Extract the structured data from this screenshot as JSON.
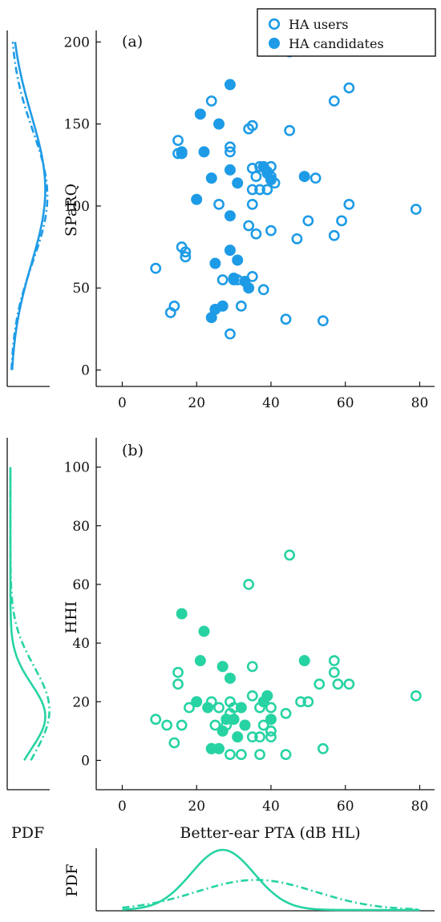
{
  "colors": {
    "panel_a": "#1e9be6",
    "panel_b": "#27d3a3",
    "axis": "#111111"
  },
  "legend": {
    "users_label": "HA users",
    "candidates_label": "HA candidates",
    "placement": "top-right"
  },
  "shared": {
    "pdf_label": "PDF",
    "xlabel": "Better-ear PTA (dB HL)"
  },
  "chart_data": [
    {
      "id": "a",
      "type": "scatter",
      "panel_label": "(a)",
      "xlabel": "",
      "ylabel": "SPaRQ",
      "xlim": [
        -7,
        84
      ],
      "ylim": [
        -10,
        207
      ],
      "xticks": [
        0,
        20,
        40,
        60,
        80
      ],
      "yticks": [
        0,
        50,
        100,
        150,
        200
      ],
      "grid": false,
      "series": [
        {
          "name": "HA users",
          "marker": "open-circle",
          "points": [
            [
              45,
              194
            ],
            [
              61,
              172
            ],
            [
              24,
              164
            ],
            [
              57,
              164
            ],
            [
              35,
              149
            ],
            [
              34,
              147
            ],
            [
              45,
              146
            ],
            [
              15,
              140
            ],
            [
              29,
              136
            ],
            [
              29,
              133
            ],
            [
              15,
              132
            ],
            [
              37,
              124
            ],
            [
              40,
              124
            ],
            [
              35,
              123
            ],
            [
              39,
              121
            ],
            [
              36,
              118
            ],
            [
              40,
              118
            ],
            [
              41,
              114
            ],
            [
              35,
              110
            ],
            [
              37,
              110
            ],
            [
              39,
              110
            ],
            [
              52,
              117
            ],
            [
              26,
              101
            ],
            [
              35,
              101
            ],
            [
              61,
              101
            ],
            [
              79,
              98
            ],
            [
              50,
              91
            ],
            [
              59,
              91
            ],
            [
              34,
              88
            ],
            [
              40,
              85
            ],
            [
              36,
              83
            ],
            [
              47,
              80
            ],
            [
              57,
              82
            ],
            [
              16,
              75
            ],
            [
              17,
              72
            ],
            [
              17,
              69
            ],
            [
              9,
              62
            ],
            [
              35,
              57
            ],
            [
              27,
              55
            ],
            [
              31,
              55
            ],
            [
              30,
              55
            ],
            [
              38,
              49
            ],
            [
              14,
              39
            ],
            [
              13,
              35
            ],
            [
              32,
              39
            ],
            [
              44,
              31
            ],
            [
              54,
              30
            ],
            [
              29,
              22
            ]
          ]
        },
        {
          "name": "HA candidates",
          "marker": "filled-circle",
          "points": [
            [
              29,
              174
            ],
            [
              21,
              156
            ],
            [
              26,
              150
            ],
            [
              16,
              133
            ],
            [
              22,
              133
            ],
            [
              16,
              132
            ],
            [
              29,
              122
            ],
            [
              38,
              124
            ],
            [
              39,
              120
            ],
            [
              40,
              116
            ],
            [
              49,
              118
            ],
            [
              24,
              117
            ],
            [
              31,
              114
            ],
            [
              20,
              104
            ],
            [
              29,
              94
            ],
            [
              29,
              73
            ],
            [
              31,
              67
            ],
            [
              25,
              65
            ],
            [
              30,
              56
            ],
            [
              34,
              50
            ],
            [
              33,
              54
            ],
            [
              27,
              39
            ],
            [
              25,
              37
            ],
            [
              24,
              32
            ]
          ]
        }
      ],
      "side_pdf": {
        "range": [
          0,
          200
        ],
        "users_solid": {
          "mean": 110,
          "sd": 45,
          "peak": 1.0
        },
        "candidates_dashdot": {
          "mean": 106,
          "sd": 40,
          "peak": 1.06
        }
      }
    },
    {
      "id": "b",
      "type": "scatter",
      "panel_label": "(b)",
      "xlabel": "Better-ear PTA (dB HL)",
      "ylabel": "HHI",
      "xlim": [
        -7,
        84
      ],
      "ylim": [
        -10,
        110
      ],
      "xticks": [
        0,
        20,
        40,
        60,
        80
      ],
      "yticks": [
        0,
        20,
        40,
        60,
        80,
        100
      ],
      "grid": false,
      "series": [
        {
          "name": "HA users",
          "marker": "open-circle",
          "points": [
            [
              45,
              70
            ],
            [
              34,
              60
            ],
            [
              57,
              34
            ],
            [
              35,
              32
            ],
            [
              57,
              30
            ],
            [
              15,
              30
            ],
            [
              15,
              26
            ],
            [
              53,
              26
            ],
            [
              58,
              26
            ],
            [
              61,
              26
            ],
            [
              79,
              22
            ],
            [
              35,
              22
            ],
            [
              39,
              22
            ],
            [
              29,
              20
            ],
            [
              24,
              20
            ],
            [
              48,
              20
            ],
            [
              50,
              20
            ],
            [
              37,
              18
            ],
            [
              40,
              18
            ],
            [
              26,
              18
            ],
            [
              18,
              18
            ],
            [
              30,
              18
            ],
            [
              9,
              14
            ],
            [
              12,
              12
            ],
            [
              16,
              12
            ],
            [
              25,
              12
            ],
            [
              28,
              12
            ],
            [
              33,
              12
            ],
            [
              38,
              12
            ],
            [
              44,
              16
            ],
            [
              29,
              16
            ],
            [
              40,
              10
            ],
            [
              14,
              6
            ],
            [
              35,
              8
            ],
            [
              37,
              8
            ],
            [
              40,
              8
            ],
            [
              29,
              2
            ],
            [
              32,
              2
            ],
            [
              37,
              2
            ],
            [
              44,
              2
            ],
            [
              54,
              4
            ]
          ]
        },
        {
          "name": "HA candidates",
          "marker": "filled-circle",
          "points": [
            [
              16,
              50
            ],
            [
              22,
              44
            ],
            [
              21,
              34
            ],
            [
              27,
              32
            ],
            [
              49,
              34
            ],
            [
              29,
              28
            ],
            [
              39,
              22
            ],
            [
              38,
              20
            ],
            [
              20,
              20
            ],
            [
              23,
              18
            ],
            [
              32,
              18
            ],
            [
              28,
              14
            ],
            [
              30,
              14
            ],
            [
              33,
              12
            ],
            [
              40,
              14
            ],
            [
              27,
              10
            ],
            [
              31,
              8
            ],
            [
              26,
              4
            ],
            [
              24,
              4
            ],
            [
              24,
              4
            ]
          ]
        }
      ],
      "side_pdf": {
        "range": [
          0,
          100
        ],
        "users_solid": {
          "mean": 15,
          "sd": 11,
          "peak": 1.0
        },
        "candidates_dashdot": {
          "mean": 17,
          "sd": 15,
          "peak": 1.12
        }
      },
      "bottom_pdf": {
        "range": [
          0,
          80
        ],
        "users_solid": {
          "mean": 27,
          "sd": 8.5,
          "peak": 1.0
        },
        "candidates_dashdot": {
          "mean": 36,
          "sd": 16,
          "peak": 0.5
        }
      }
    }
  ]
}
